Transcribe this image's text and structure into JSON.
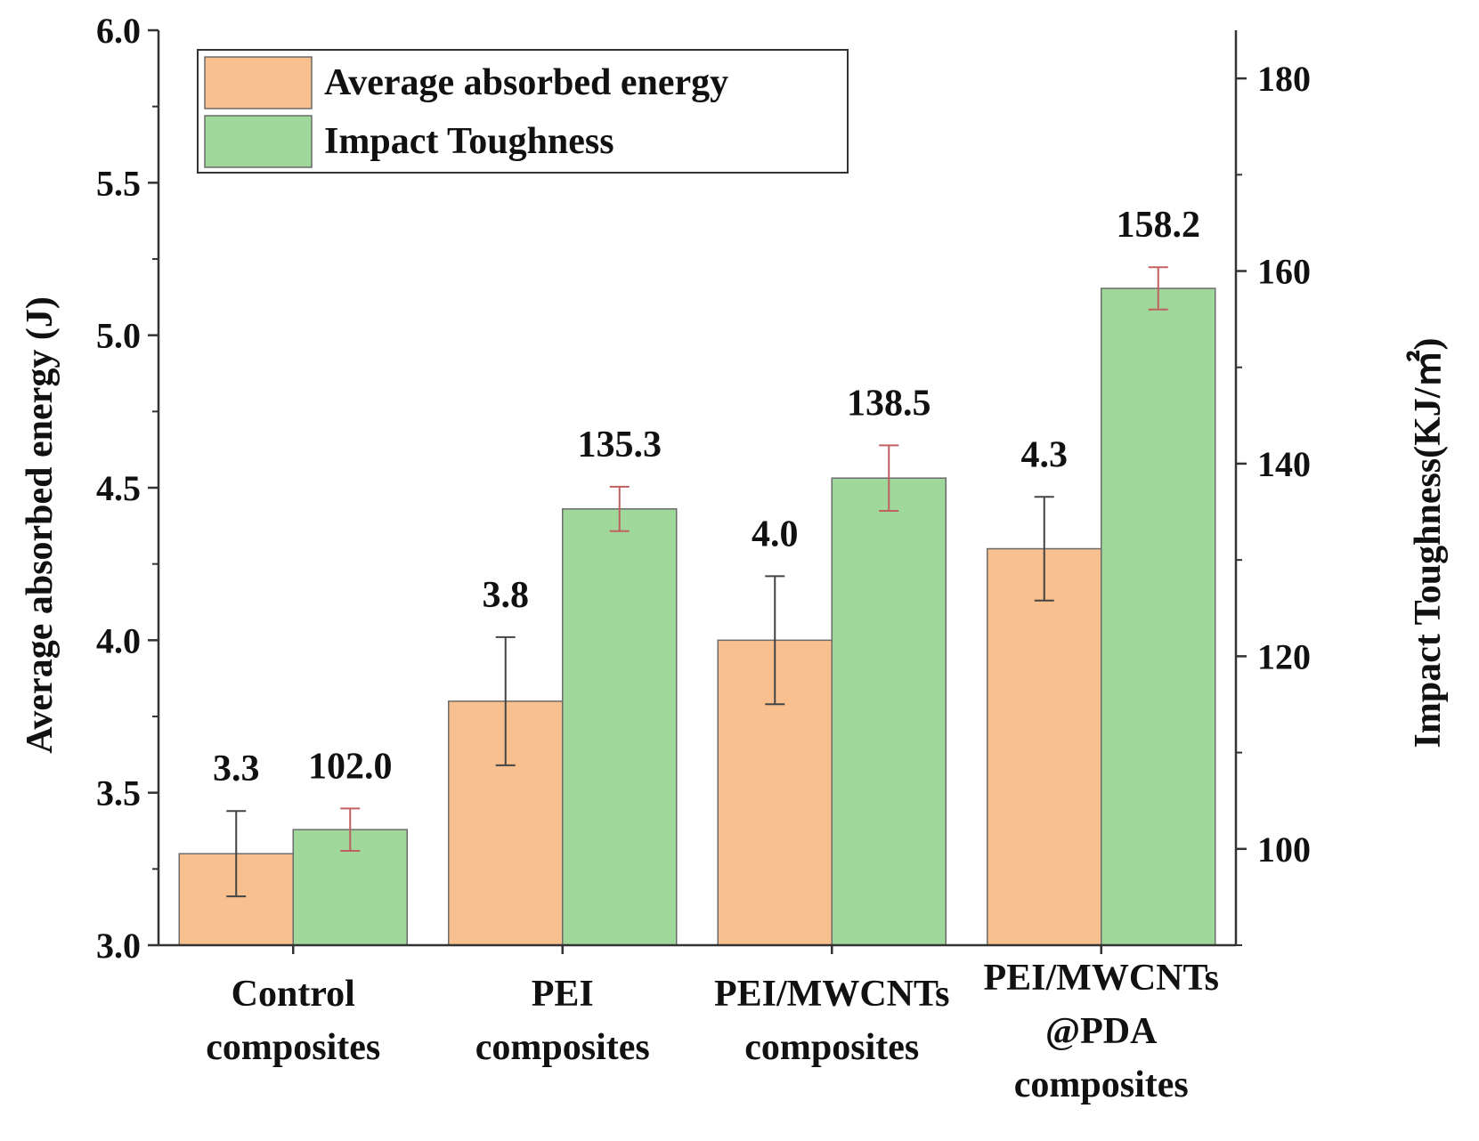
{
  "chart_data": {
    "type": "bar",
    "categories": [
      [
        "Control",
        "composites"
      ],
      [
        "PEI",
        "composites"
      ],
      [
        "PEI/MWCNTs",
        "composites"
      ],
      [
        "PEI/MWCNTs",
        "@PDA",
        "composites"
      ]
    ],
    "series": [
      {
        "name": "Average absorbed energy",
        "axis": "left",
        "color": "#f7c08e",
        "values": [
          3.3,
          3.8,
          4.0,
          4.3
        ],
        "errors": [
          0.14,
          0.21,
          0.21,
          0.17
        ],
        "labels": [
          "3.3",
          "3.8",
          "4.0",
          "4.3"
        ],
        "error_color": "#444444"
      },
      {
        "name": "Impact Toughness",
        "axis": "right",
        "color": "#9fd89a",
        "values": [
          102.0,
          135.3,
          138.5,
          158.2
        ],
        "errors": [
          2.2,
          2.3,
          3.4,
          2.2
        ],
        "labels": [
          "102.0",
          "135.3",
          "138.5",
          "158.2"
        ],
        "error_color": "#c06060"
      }
    ],
    "y_left": {
      "label": "Average absorbed energy (J)",
      "lim": [
        3.0,
        6.0
      ],
      "ticks": [
        "3.0",
        "3.5",
        "4.0",
        "4.5",
        "5.0",
        "5.5",
        "6.0"
      ]
    },
    "y_right": {
      "label": "Impact Toughness(KJ/㎡)",
      "lim": [
        90,
        185
      ],
      "ticks": [
        "100",
        "120",
        "140",
        "160",
        "180"
      ]
    },
    "legend": {
      "position": "top-left"
    },
    "grid": false
  }
}
